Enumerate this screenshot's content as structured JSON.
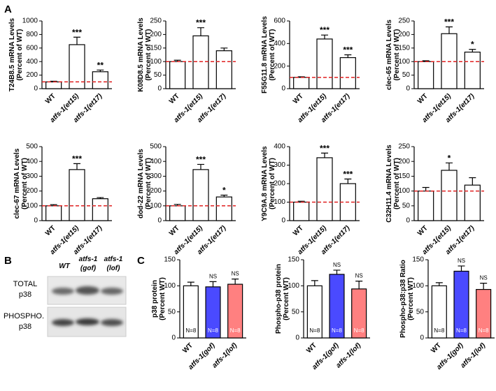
{
  "panel_labels": [
    "A",
    "B",
    "C"
  ],
  "blot": {
    "rows": [
      [
        "TOTAL",
        "p38"
      ],
      [
        "PHOSPHO.",
        "p38"
      ]
    ],
    "columns": [
      [
        "WT"
      ],
      [
        "atfs-1",
        "(gof)"
      ],
      [
        "atfs-1",
        "(lof)"
      ]
    ]
  },
  "chart_data": [
    {
      "type": "bar",
      "ylabel": [
        "T24B8.5 mRNA Levels",
        "(Percent of WT)"
      ],
      "categories": [
        "WT",
        "atfs-1(et15)",
        "atfs-1(et17)"
      ],
      "values": [
        100,
        650,
        250
      ],
      "errors": [
        10,
        110,
        25
      ],
      "annotations": [
        null,
        "***",
        "**"
      ],
      "colors": [
        "#ffffff",
        "#ffffff",
        "#ffffff"
      ],
      "ylim": [
        0,
        1000
      ],
      "yticks": [
        0,
        200,
        400,
        600,
        800,
        1000
      ],
      "reference_line": {
        "value": 100,
        "color": "#e02020"
      }
    },
    {
      "type": "bar",
      "ylabel": [
        "K08D8.5 mRNA Levels",
        "(Percent of WT)"
      ],
      "categories": [
        "WT",
        "atfs-1(et15)",
        "atfs-1(et17)"
      ],
      "values": [
        100,
        195,
        140
      ],
      "errors": [
        5,
        30,
        10
      ],
      "annotations": [
        null,
        "***",
        null
      ],
      "colors": [
        "#ffffff",
        "#ffffff",
        "#ffffff"
      ],
      "ylim": [
        0,
        250
      ],
      "yticks": [
        0,
        50,
        100,
        150,
        200,
        250
      ],
      "reference_line": {
        "value": 100,
        "color": "#e02020"
      }
    },
    {
      "type": "bar",
      "ylabel": [
        "F55G11.8 mRNA Levels",
        "(Percent of WT)"
      ],
      "categories": [
        "WT",
        "atfs-1(et15)",
        "atfs-1(et17)"
      ],
      "values": [
        100,
        440,
        275
      ],
      "errors": [
        5,
        35,
        25
      ],
      "annotations": [
        null,
        "***",
        "***"
      ],
      "colors": [
        "#ffffff",
        "#ffffff",
        "#ffffff"
      ],
      "ylim": [
        0,
        600
      ],
      "yticks": [
        0,
        200,
        400,
        600
      ],
      "reference_line": {
        "value": 100,
        "color": "#e02020"
      }
    },
    {
      "type": "bar",
      "ylabel": [
        "clec-65 mRNA Levels",
        "(Percent of WT)"
      ],
      "categories": [
        "WT",
        "atfs-1(et15)",
        "atfs-1(et17)"
      ],
      "values": [
        100,
        203,
        135
      ],
      "errors": [
        3,
        25,
        10
      ],
      "annotations": [
        null,
        "***",
        "*"
      ],
      "colors": [
        "#ffffff",
        "#ffffff",
        "#ffffff"
      ],
      "ylim": [
        0,
        250
      ],
      "yticks": [
        0,
        50,
        100,
        150,
        200,
        250
      ],
      "reference_line": {
        "value": 100,
        "color": "#e02020"
      }
    },
    {
      "type": "bar",
      "ylabel": [
        "clec-67 mRNA Levels",
        "(Percent of WT)"
      ],
      "categories": [
        "WT",
        "atfs-1(et15)",
        "atfs-1(et17)"
      ],
      "values": [
        100,
        345,
        148
      ],
      "errors": [
        8,
        40,
        8
      ],
      "annotations": [
        null,
        "***",
        null
      ],
      "colors": [
        "#ffffff",
        "#ffffff",
        "#ffffff"
      ],
      "ylim": [
        0,
        500
      ],
      "yticks": [
        0,
        100,
        200,
        300,
        400,
        500
      ],
      "reference_line": {
        "value": 100,
        "color": "#e02020"
      }
    },
    {
      "type": "bar",
      "ylabel": [
        "dod-22 mRNA Levels",
        "(Percent of WT)"
      ],
      "categories": [
        "WT",
        "atfs-1(et15)",
        "atfs-1(et17)"
      ],
      "values": [
        100,
        345,
        160
      ],
      "errors": [
        10,
        35,
        12
      ],
      "annotations": [
        null,
        "***",
        "*"
      ],
      "colors": [
        "#ffffff",
        "#ffffff",
        "#ffffff"
      ],
      "ylim": [
        0,
        500
      ],
      "yticks": [
        0,
        100,
        200,
        300,
        400,
        500
      ],
      "reference_line": {
        "value": 100,
        "color": "#e02020"
      }
    },
    {
      "type": "bar",
      "ylabel": [
        "Y9C9A.8 mRNA Levels",
        "(Percent of WT)"
      ],
      "categories": [
        "WT",
        "atfs-1(et15)",
        "atfs-1(et17)"
      ],
      "values": [
        100,
        340,
        200
      ],
      "errors": [
        5,
        25,
        25
      ],
      "annotations": [
        null,
        "***",
        "***"
      ],
      "colors": [
        "#ffffff",
        "#ffffff",
        "#ffffff"
      ],
      "ylim": [
        0,
        400
      ],
      "yticks": [
        0,
        100,
        200,
        300,
        400
      ],
      "reference_line": {
        "value": 100,
        "color": "#e02020"
      }
    },
    {
      "type": "bar",
      "ylabel": [
        "C32H11.4 mRNA Levels",
        "(Percent of WT)"
      ],
      "categories": [
        "WT",
        "atfs-1(et15)",
        "atfs-1(et17)"
      ],
      "values": [
        100,
        170,
        120
      ],
      "errors": [
        12,
        25,
        25
      ],
      "annotations": [
        null,
        "*",
        null
      ],
      "colors": [
        "#ffffff",
        "#ffffff",
        "#ffffff"
      ],
      "ylim": [
        0,
        250
      ],
      "yticks": [
        0,
        50,
        100,
        150,
        200,
        250
      ],
      "reference_line": {
        "value": 100,
        "color": "#e02020"
      }
    },
    {
      "type": "bar",
      "ylabel": [
        "p38 protein",
        "(Percent WT)"
      ],
      "categories": [
        "WT",
        "atfs-1(gof)",
        "atfs-1(lof)"
      ],
      "values": [
        100,
        98,
        103
      ],
      "errors": [
        7,
        10,
        10
      ],
      "annotations": [
        null,
        "NS",
        "NS"
      ],
      "n_labels": [
        "N=8",
        "N=8",
        "N=8"
      ],
      "colors": [
        "#ffffff",
        "#4a4aff",
        "#ff8080"
      ],
      "ylim": [
        0,
        150
      ],
      "yticks": [
        0,
        50,
        100,
        150
      ]
    },
    {
      "type": "bar",
      "ylabel": [
        "Phospho-p38 protein",
        "(Percent WT)"
      ],
      "categories": [
        "WT",
        "atfs-1(gof)",
        "atfs-1(lof)"
      ],
      "values": [
        100,
        122,
        94
      ],
      "errors": [
        10,
        8,
        15
      ],
      "annotations": [
        null,
        "NS",
        "NS"
      ],
      "n_labels": [
        "N=8",
        "N=8",
        "N=8"
      ],
      "colors": [
        "#ffffff",
        "#4a4aff",
        "#ff8080"
      ],
      "ylim": [
        0,
        150
      ],
      "yticks": [
        0,
        50,
        100,
        150
      ]
    },
    {
      "type": "bar",
      "ylabel": [
        "Phospho-p38:p38 Ratio",
        "(Percent WT)"
      ],
      "categories": [
        "WT",
        "atfs-1(gof)",
        "atfs-1(lof)"
      ],
      "values": [
        100,
        128,
        93
      ],
      "errors": [
        6,
        10,
        12
      ],
      "annotations": [
        null,
        "NS",
        "NS"
      ],
      "n_labels": [
        "N=8",
        "N=8",
        "N=8"
      ],
      "colors": [
        "#ffffff",
        "#4a4aff",
        "#ff8080"
      ],
      "ylim": [
        0,
        150
      ],
      "yticks": [
        0,
        50,
        100,
        150
      ]
    }
  ]
}
